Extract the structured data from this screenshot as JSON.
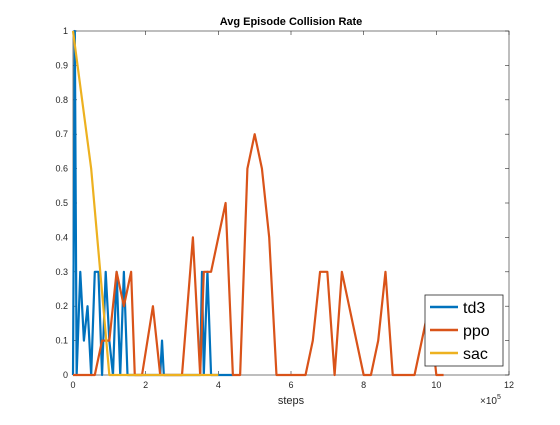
{
  "chart_data": {
    "type": "line",
    "title": "Avg Episode Collision Rate",
    "xlabel": "steps",
    "ylabel": "",
    "x_multiplier_label": "×10",
    "x_multiplier_exponent": "5",
    "xlim": [
      0,
      12
    ],
    "ylim": [
      0,
      1
    ],
    "xticks": [
      0,
      2,
      4,
      6,
      8,
      10,
      12
    ],
    "yticks": [
      0,
      0.1,
      0.2,
      0.3,
      0.4,
      0.5,
      0.6,
      0.7,
      0.8,
      0.9,
      1
    ],
    "grid": false,
    "legend_position": "bottom-right",
    "series": [
      {
        "name": "td3",
        "color": "#0072BD",
        "x": [
          0,
          0.05,
          0.1,
          0.2,
          0.3,
          0.4,
          0.5,
          0.6,
          0.7,
          0.8,
          0.9,
          1.0,
          1.1,
          1.2,
          1.3,
          1.4,
          1.5,
          1.6,
          1.7,
          1.8,
          1.9,
          2.0,
          2.1,
          2.2,
          2.3,
          2.4,
          2.45,
          2.5,
          2.6,
          2.7,
          2.8,
          2.9,
          3.0,
          3.1,
          3.2,
          3.3,
          3.4,
          3.5,
          3.55,
          3.6,
          3.7,
          3.8,
          3.9,
          4.0,
          4.1,
          4.2,
          4.3,
          4.4
        ],
        "values": [
          0,
          1,
          0,
          0.3,
          0.1,
          0.2,
          0,
          0.3,
          0.3,
          0,
          0.3,
          0.1,
          0,
          0.3,
          0,
          0.3,
          0,
          0,
          0,
          0,
          0,
          0,
          0,
          0,
          0,
          0,
          0.1,
          0,
          0,
          0,
          0,
          0,
          0,
          0,
          0,
          0,
          0,
          0,
          0.3,
          0,
          0.3,
          0,
          0,
          0,
          0,
          0,
          0,
          0
        ]
      },
      {
        "name": "ppo",
        "color": "#D95319",
        "x": [
          0,
          0.6,
          0.8,
          1.0,
          1.2,
          1.4,
          1.6,
          1.7,
          1.9,
          2.2,
          2.4,
          2.6,
          3.0,
          3.3,
          3.5,
          3.6,
          3.8,
          4.0,
          4.2,
          4.4,
          4.6,
          4.8,
          5.0,
          5.2,
          5.4,
          5.6,
          5.8,
          6.0,
          6.2,
          6.4,
          6.6,
          6.8,
          7.0,
          7.2,
          7.4,
          7.6,
          7.8,
          8.0,
          8.2,
          8.4,
          8.6,
          8.8,
          9.0,
          9.2,
          9.4,
          9.6,
          9.8,
          10.0,
          10.2
        ],
        "values": [
          0,
          0,
          0.1,
          0.1,
          0.3,
          0.2,
          0.3,
          0,
          0,
          0.2,
          0,
          0,
          0,
          0.4,
          0,
          0.3,
          0.3,
          0.4,
          0.5,
          0,
          0,
          0.6,
          0.7,
          0.6,
          0.4,
          0,
          0,
          0,
          0,
          0,
          0.1,
          0.3,
          0.3,
          0,
          0.3,
          0.2,
          0.1,
          0,
          0,
          0.1,
          0.3,
          0,
          0,
          0,
          0,
          0.1,
          0.2,
          0,
          0
        ]
      },
      {
        "name": "sac",
        "color": "#EDB120",
        "x": [
          0,
          0.5,
          1.0,
          1.1,
          1.5,
          2.0,
          2.5,
          3.0,
          3.5,
          4.0
        ],
        "values": [
          1,
          0.6,
          0,
          0,
          0,
          0,
          0,
          0,
          0,
          0
        ]
      }
    ]
  }
}
